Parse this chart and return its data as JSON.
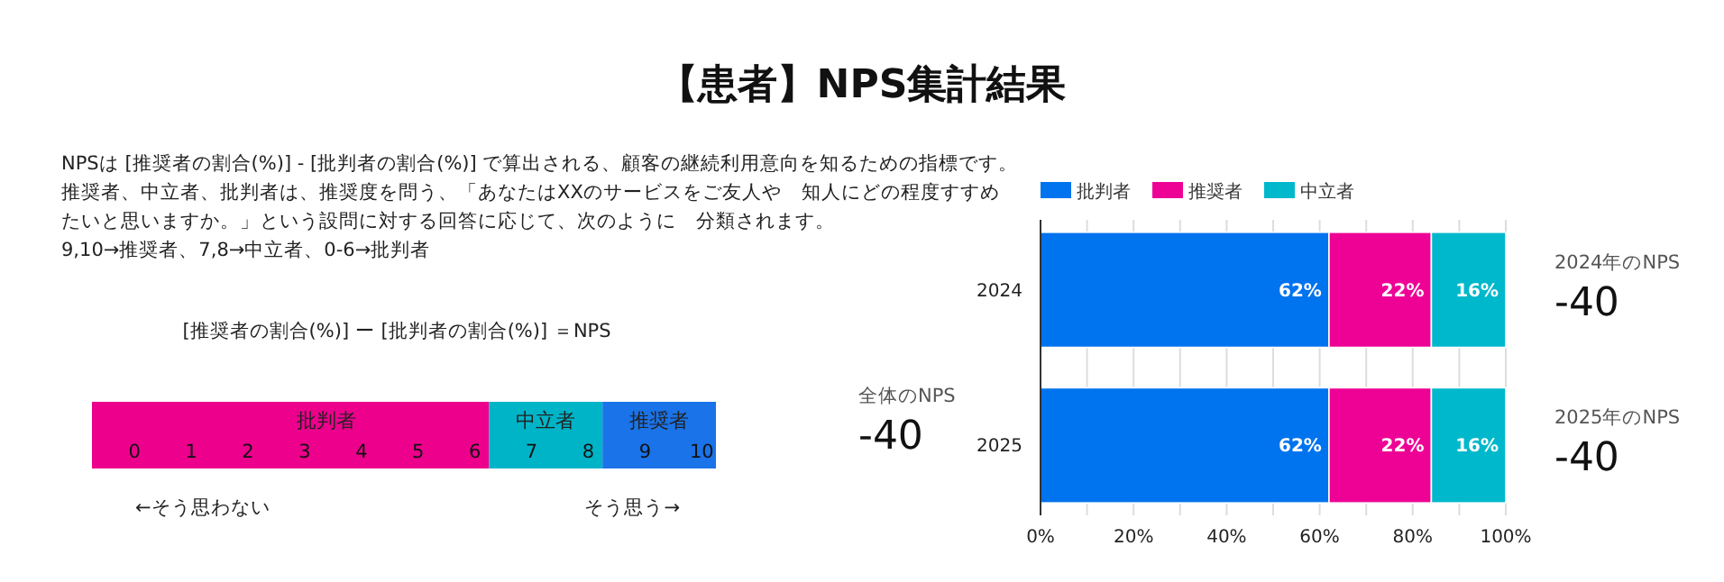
{
  "chart_data": {
    "type": "bar",
    "orientation": "horizontal",
    "stacked": true,
    "title": "【患者】NPS集計結果",
    "categories": [
      "2024",
      "2025"
    ],
    "series": [
      {
        "name": "批判者",
        "color": "#0073ee",
        "values": [
          62,
          62
        ],
        "value_labels": [
          "62%",
          "62%"
        ]
      },
      {
        "name": "推奨者",
        "color": "#ee0296",
        "values": [
          22,
          22
        ],
        "value_labels": [
          "22%",
          "22%"
        ]
      },
      {
        "name": "中立者",
        "color": "#00b8cc",
        "values": [
          16,
          16
        ],
        "value_labels": [
          "16%",
          "16%"
        ]
      }
    ],
    "xlim": [
      0,
      100
    ],
    "xticks": [
      {
        "value": 0,
        "label": "0%"
      },
      {
        "value": 10,
        "label": null
      },
      {
        "value": 20,
        "label": "20%"
      },
      {
        "value": 30,
        "label": null
      },
      {
        "value": 40,
        "label": "40%"
      },
      {
        "value": 50,
        "label": null
      },
      {
        "value": 60,
        "label": "60%"
      },
      {
        "value": 70,
        "label": null
      },
      {
        "value": 80,
        "label": "80%"
      },
      {
        "value": 90,
        "label": null
      },
      {
        "value": 100,
        "label": "100%"
      }
    ],
    "grid": "x",
    "legend": "top left",
    "annotations": [
      "NPSは [推奨者の割合(%)] - [批判者の割合(%)] で算出される、顧客の継続利用意向を知るための指標です。",
      "推奨者、中立者、批判者は、推奨度を問う、「あなたはXXのサービスをご友人や　知人にどの程度すすめ",
      "たいと思いますか。」という設問に対する回答に応じて、次のように　分類されます。",
      "9,10→推奨者、7,8→中立者、0-6→批判者",
      "[推奨者の割合(%)] ー [批判者の割合(%)] ＝NPS",
      "批判者",
      "中立者",
      "推奨者",
      "0",
      "1",
      "2",
      "3",
      "4",
      "5",
      "6",
      "7",
      "8",
      "9",
      "10",
      "←そう思わない",
      "そう思う→",
      "全体のNPS",
      "-40",
      "2024年のNPS",
      "-40",
      "2025年のNPS",
      "-40"
    ]
  }
}
